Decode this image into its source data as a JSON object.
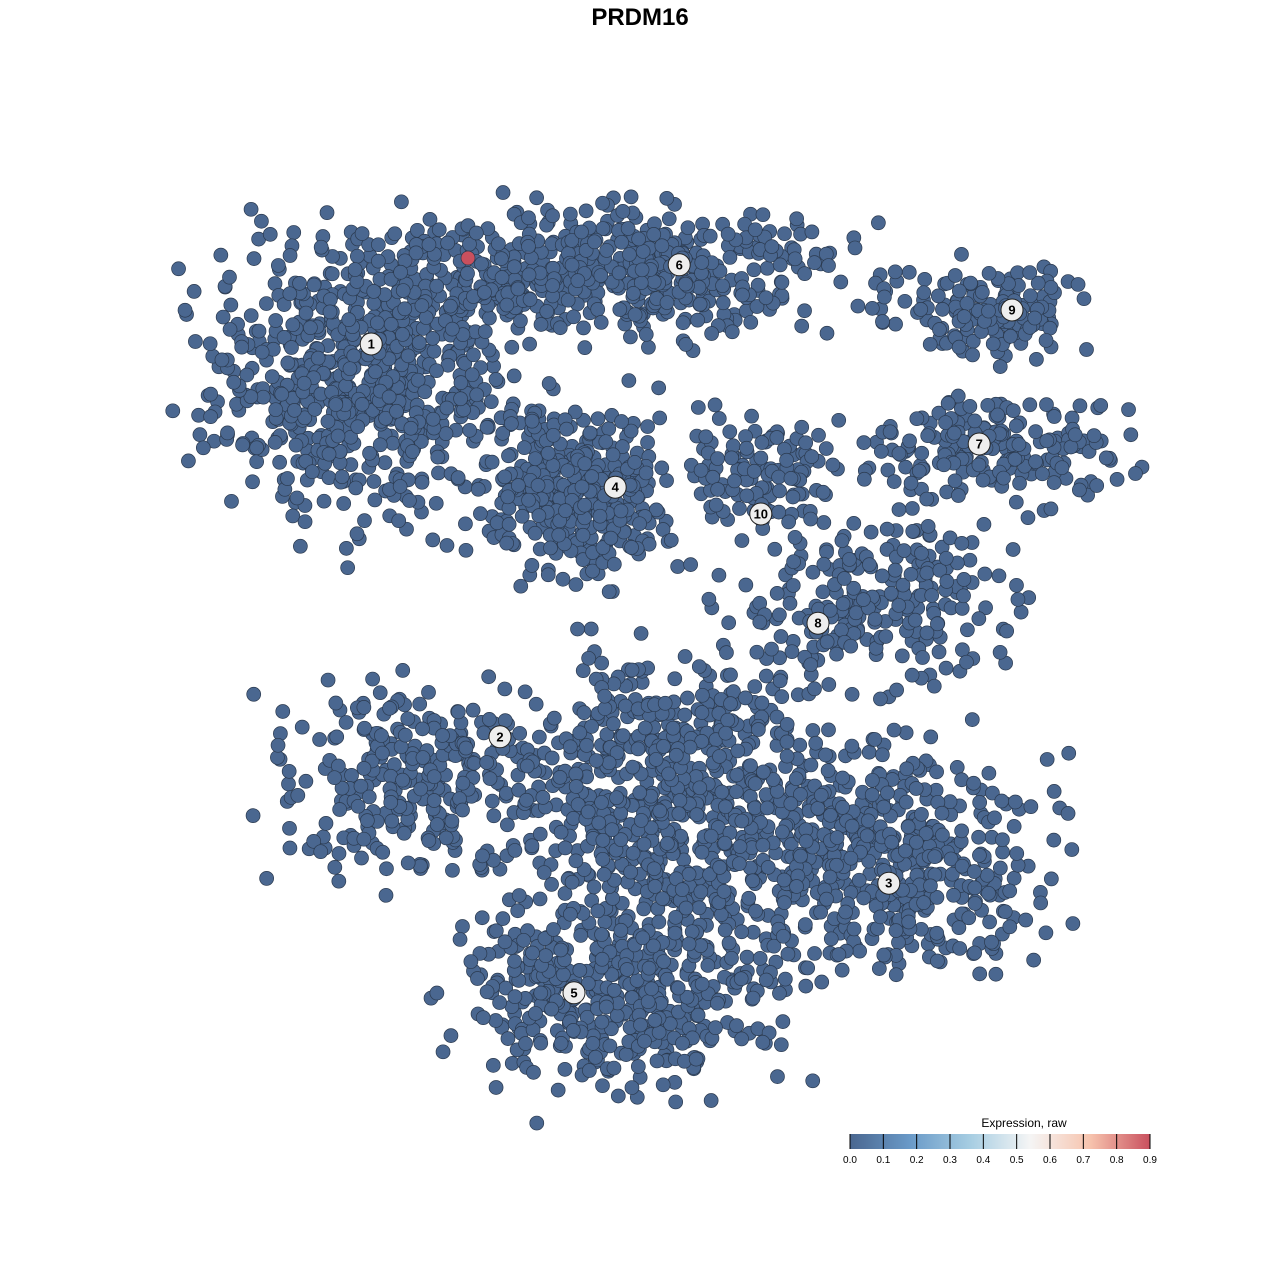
{
  "chart_data": {
    "type": "scatter",
    "title": "PRDM16",
    "xlabel": "",
    "ylabel": "",
    "axes_visible": false,
    "grid": false,
    "point_color_base": "#4a6790",
    "point_stroke": "#2b3a4f",
    "clusters": [
      {
        "label": "1",
        "label_pos": [
          -6.72,
          7.4
        ],
        "components": [
          {
            "center": [
              -7.0,
              6.5
            ],
            "sd": [
              3.0,
              2.75
            ],
            "n": 700
          }
        ]
      },
      {
        "label": "2",
        "label_pos": [
          -3.5,
          -2.42
        ],
        "components": [
          {
            "center": [
              -5.5,
              -3.5
            ],
            "sd": [
              2.75,
              1.9
            ],
            "n": 300
          }
        ]
      },
      {
        "label": "3",
        "label_pos": [
          6.22,
          -6.08
        ],
        "components": [
          {
            "center": [
              6.25,
              -5.5
            ],
            "sd": [
              3.0,
              2.25
            ],
            "n": 500
          }
        ]
      },
      {
        "label": "4",
        "label_pos": [
          -0.62,
          3.82
        ],
        "components": [
          {
            "center": [
              -1.5,
              3.75
            ],
            "sd": [
              1.75,
              1.75
            ],
            "n": 400
          }
        ]
      },
      {
        "label": "5",
        "label_pos": [
          -1.65,
          -8.82
        ],
        "components": [
          {
            "center": [
              -0.5,
              -8.75
            ],
            "sd": [
              3.0,
              2.0
            ],
            "n": 500
          },
          {
            "center": [
              1.0,
              -4.0
            ],
            "sd": [
              3.25,
              3.0
            ],
            "n": 700
          }
        ]
      },
      {
        "label": "6",
        "label_pos": [
          0.98,
          9.38
        ],
        "components": [
          {
            "center": [
              -1.0,
              9.25
            ],
            "sd": [
              5.0,
              1.25
            ],
            "n": 600
          }
        ]
      },
      {
        "label": "7",
        "label_pos": [
          8.48,
          4.9
        ],
        "components": [
          {
            "center": [
              8.75,
              4.75
            ],
            "sd": [
              2.75,
              1.0
            ],
            "n": 200
          }
        ]
      },
      {
        "label": "8",
        "label_pos": [
          4.45,
          0.42
        ],
        "components": [
          {
            "center": [
              6.0,
              1.0
            ],
            "sd": [
              2.5,
              1.75
            ],
            "n": 250
          }
        ]
      },
      {
        "label": "9",
        "label_pos": [
          9.3,
          8.25
        ],
        "components": [
          {
            "center": [
              8.75,
              8.25
            ],
            "sd": [
              2.0,
              1.0
            ],
            "n": 150
          }
        ]
      },
      {
        "label": "10",
        "label_pos": [
          3.02,
          3.15
        ],
        "components": [
          {
            "center": [
              3.0,
              4.25
            ],
            "sd": [
              1.5,
              1.25
            ],
            "n": 120
          }
        ]
      }
    ],
    "expressing_points": [
      {
        "x": -4.3,
        "y": 9.55,
        "value": 0.9
      }
    ],
    "colorbar": {
      "title": "Expression, raw",
      "min": 0.0,
      "max": 0.9,
      "ticks": [
        "0.0",
        "0.1",
        "0.2",
        "0.3",
        "0.4",
        "0.5",
        "0.6",
        "0.7",
        "0.8",
        "0.9"
      ],
      "colors": [
        "#4a6790",
        "#6a9ac8",
        "#a6cde2",
        "#f5f5f5",
        "#f7c4ae",
        "#c9505e"
      ],
      "placement": "bottom-right"
    }
  }
}
